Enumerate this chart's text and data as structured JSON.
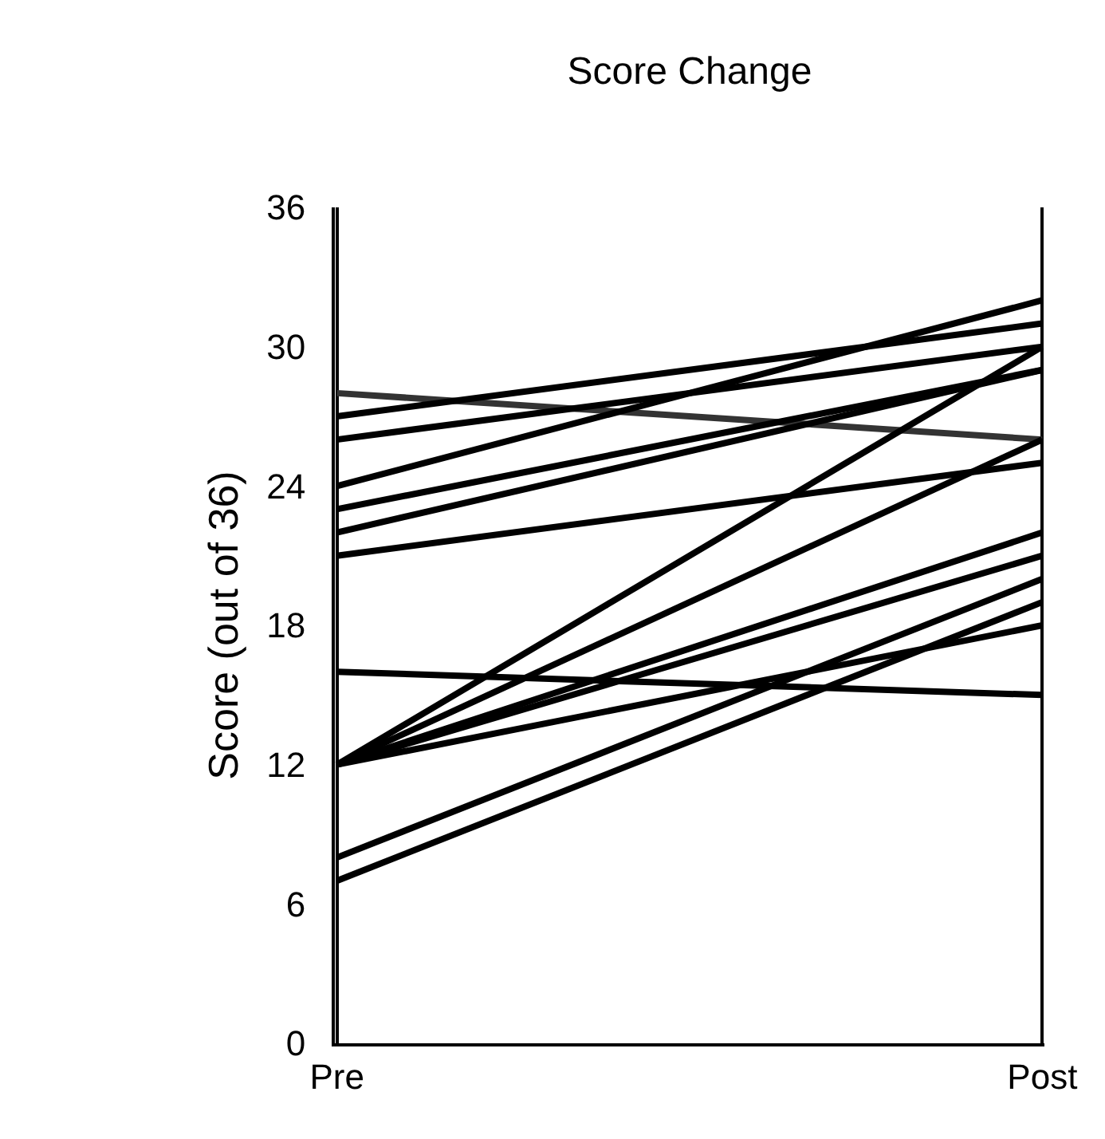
{
  "chart_data": {
    "type": "line",
    "title": "Score Change",
    "ylabel": "Score (out of 36)",
    "categories": [
      "Pre",
      "Post"
    ],
    "series": [
      {
        "color": "#333333",
        "values": [
          28,
          26
        ]
      },
      {
        "color": "#000000",
        "values": [
          27,
          31
        ]
      },
      {
        "color": "#000000",
        "values": [
          26,
          30
        ]
      },
      {
        "color": "#000000",
        "values": [
          24,
          32
        ]
      },
      {
        "color": "#000000",
        "values": [
          23,
          29
        ]
      },
      {
        "color": "#000000",
        "values": [
          22,
          29
        ]
      },
      {
        "color": "#000000",
        "values": [
          21,
          25
        ]
      },
      {
        "color": "#000000",
        "values": [
          16,
          15
        ]
      },
      {
        "color": "#000000",
        "values": [
          12,
          30
        ]
      },
      {
        "color": "#000000",
        "values": [
          12,
          26
        ]
      },
      {
        "color": "#000000",
        "values": [
          12,
          22
        ]
      },
      {
        "color": "#000000",
        "values": [
          12,
          21
        ]
      },
      {
        "color": "#000000",
        "values": [
          12,
          18
        ]
      },
      {
        "color": "#000000",
        "values": [
          8,
          20
        ]
      },
      {
        "color": "#000000",
        "values": [
          7,
          19
        ]
      }
    ],
    "ylim": [
      0,
      36
    ],
    "yticks": [
      0,
      6,
      12,
      18,
      24,
      30,
      36
    ],
    "grid": "x",
    "marker": "none",
    "line_style": "solid"
  }
}
